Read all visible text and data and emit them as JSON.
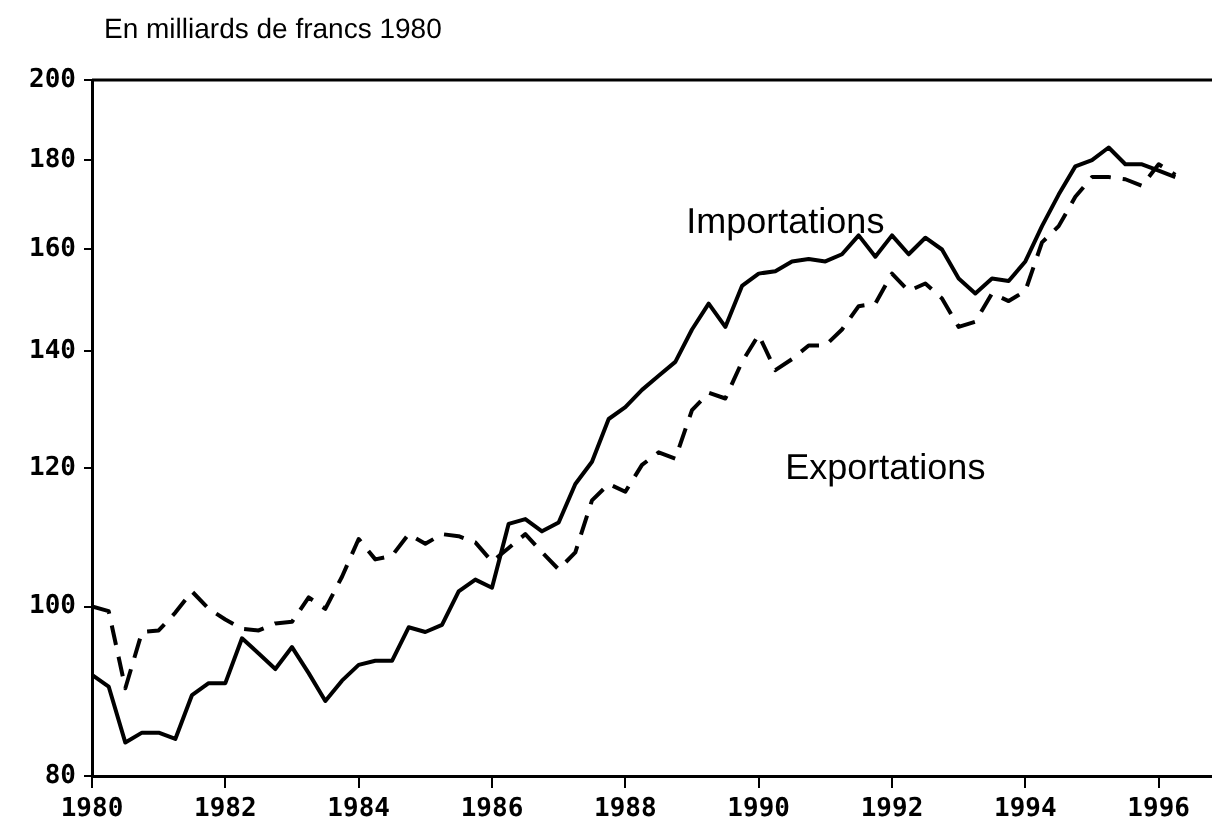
{
  "chart_data": {
    "type": "line",
    "ylabel": "En milliards de francs 1980",
    "x": [
      1980,
      1980.25,
      1980.5,
      1980.75,
      1981,
      1981.25,
      1981.5,
      1981.75,
      1982,
      1982.25,
      1982.5,
      1982.75,
      1983,
      1983.25,
      1983.5,
      1983.75,
      1984,
      1984.25,
      1984.5,
      1984.75,
      1985,
      1985.25,
      1985.5,
      1985.75,
      1986,
      1986.25,
      1986.5,
      1986.75,
      1987,
      1987.25,
      1987.5,
      1987.75,
      1988,
      1988.25,
      1988.5,
      1988.75,
      1989,
      1989.25,
      1989.5,
      1989.75,
      1990,
      1990.25,
      1990.5,
      1990.75,
      1991,
      1991.25,
      1991.5,
      1991.75,
      1992,
      1992.25,
      1992.5,
      1992.75,
      1993,
      1993.25,
      1993.5,
      1993.75,
      1994,
      1994.25,
      1994.5,
      1994.75,
      1995,
      1995.25,
      1995.5,
      1995.75,
      1996,
      1996.25
    ],
    "series": [
      {
        "name": "Importations",
        "color": "#000000",
        "line_style": "solid",
        "values": [
          91.4,
          90,
          83.6,
          84.7,
          84.7,
          84,
          89,
          90.4,
          90.4,
          95.9,
          94,
          92.1,
          94.8,
          91.6,
          88.3,
          90.7,
          92.6,
          93.1,
          93.1,
          97.3,
          96.7,
          97.6,
          102,
          103.6,
          102.5,
          111.5,
          112.2,
          110.4,
          111.7,
          117.5,
          121,
          128,
          130,
          133,
          135.5,
          138,
          144,
          149,
          144.5,
          152.5,
          155,
          155.5,
          157.5,
          158,
          157.5,
          159,
          163,
          158.5,
          163,
          159,
          162.5,
          160,
          154,
          151,
          154,
          153.5,
          157.5,
          165,
          172,
          178.5,
          180,
          183,
          179,
          179,
          177.5,
          176
        ]
      },
      {
        "name": "Exportations",
        "color": "#000000",
        "line_style": "dashed",
        "values": [
          100,
          99.4,
          89.8,
          96.7,
          96.9,
          99.2,
          102,
          99.7,
          98.3,
          97.1,
          96.9,
          97.8,
          98,
          101.2,
          99.7,
          104,
          109.3,
          106.4,
          106.9,
          110,
          108.6,
          110,
          109.7,
          108.8,
          106.1,
          108,
          110,
          107.4,
          105,
          107.4,
          115,
          117.5,
          116.3,
          120.5,
          122.5,
          121.5,
          129.5,
          132.5,
          131.5,
          138,
          143,
          136.5,
          138.5,
          141,
          141,
          144,
          148.5,
          149,
          155,
          151.5,
          153,
          150,
          144.5,
          145.5,
          151,
          149.5,
          151.5,
          161.5,
          165,
          171.5,
          176,
          176,
          175.5,
          174,
          179,
          176.5
        ]
      }
    ],
    "xlim": [
      1980,
      1996.8
    ],
    "xticks": [
      1980,
      1982,
      1984,
      1986,
      1988,
      1990,
      1992,
      1994,
      1996
    ],
    "ylim": [
      80,
      200
    ],
    "yticks": [
      80,
      100,
      120,
      140,
      160,
      180,
      200
    ],
    "log": "y",
    "grid": false,
    "legend": false,
    "marker": "none"
  }
}
